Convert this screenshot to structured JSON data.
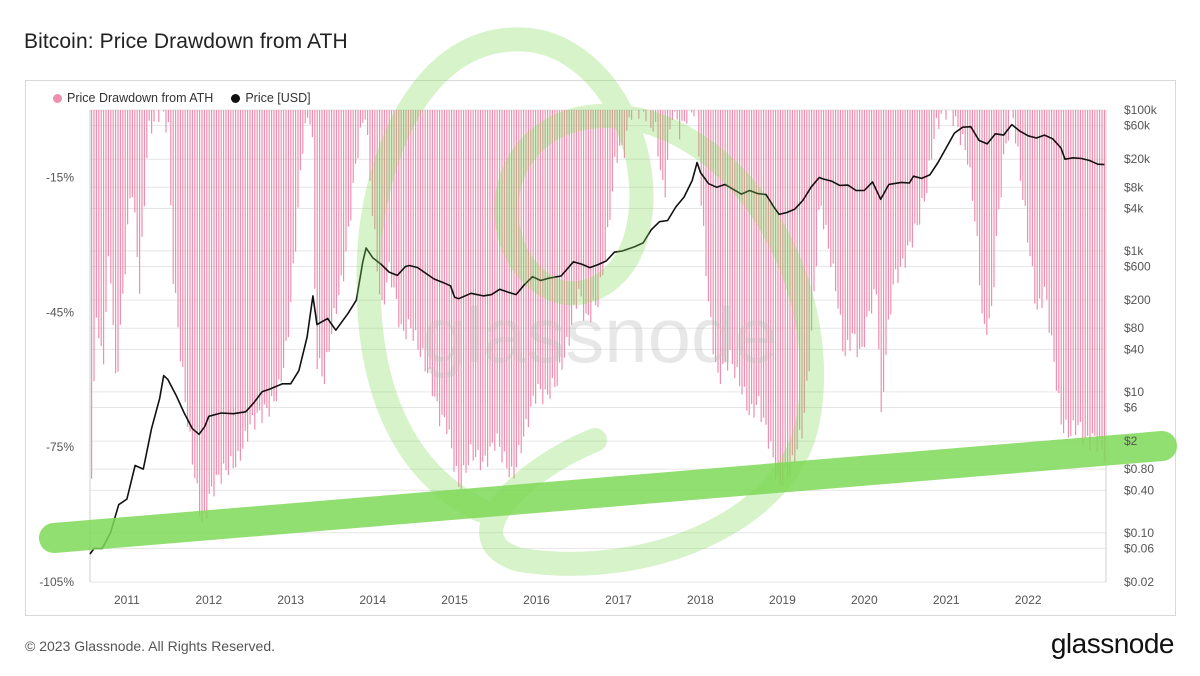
{
  "title": "Bitcoin: Price Drawdown from ATH",
  "footer": "© 2023 Glassnode. All Rights Reserved.",
  "brand": "glassnode",
  "watermark": "glassnode",
  "colors": {
    "drawdown": "#ee8fb0",
    "price": "#111111",
    "highlight": "#7ed957",
    "grid": "#e6e6e6",
    "axis": "#555555"
  },
  "chart_data": {
    "type": "bar",
    "legend": [
      {
        "name": "Price Drawdown from ATH",
        "color": "#ee8fb0",
        "marker": "dot"
      },
      {
        "name": "Price [USD]",
        "color": "#111111",
        "marker": "dot"
      }
    ],
    "legend_position": "top-left",
    "grid": true,
    "x": {
      "ticks": [
        "2011",
        "2012",
        "2013",
        "2014",
        "2015",
        "2016",
        "2017",
        "2018",
        "2019",
        "2020",
        "2021",
        "2022"
      ],
      "range": [
        2010.55,
        2022.95
      ]
    },
    "y_left": {
      "ticks": [
        "-15%",
        "-45%",
        "-75%",
        "-105%"
      ],
      "tick_values": [
        -15,
        -45,
        -75,
        -105
      ],
      "range": [
        -105,
        0
      ]
    },
    "y_right": {
      "scale": "log",
      "ticks": [
        "$100k",
        "$60k",
        "$20k",
        "$8k",
        "$4k",
        "$1k",
        "$600",
        "$200",
        "$80",
        "$40",
        "$10",
        "$6",
        "$2",
        "$0.80",
        "$0.40",
        "$0.10",
        "$0.06",
        "$0.02"
      ],
      "tick_values": [
        100000,
        60000,
        20000,
        8000,
        4000,
        1000,
        600,
        200,
        80,
        40,
        10,
        6,
        2,
        0.8,
        0.4,
        0.1,
        0.06,
        0.02
      ],
      "range": [
        0.02,
        100000
      ]
    },
    "series": [
      {
        "name": "Price Drawdown from ATH",
        "kind": "bar",
        "points": [
          [
            2010.55,
            -88
          ],
          [
            2010.62,
            -45
          ],
          [
            2010.7,
            -58
          ],
          [
            2010.78,
            -30
          ],
          [
            2010.86,
            -62
          ],
          [
            2010.95,
            -40
          ],
          [
            2011.05,
            -15
          ],
          [
            2011.15,
            -40
          ],
          [
            2011.25,
            -5
          ],
          [
            2011.4,
            0
          ],
          [
            2011.5,
            -4
          ],
          [
            2011.55,
            -35
          ],
          [
            2011.65,
            -55
          ],
          [
            2011.75,
            -72
          ],
          [
            2011.85,
            -85
          ],
          [
            2011.92,
            -93
          ],
          [
            2012.0,
            -86
          ],
          [
            2012.1,
            -82
          ],
          [
            2012.2,
            -80
          ],
          [
            2012.35,
            -78
          ],
          [
            2012.5,
            -70
          ],
          [
            2012.6,
            -68
          ],
          [
            2012.75,
            -66
          ],
          [
            2012.85,
            -62
          ],
          [
            2012.95,
            -52
          ],
          [
            2013.05,
            -30
          ],
          [
            2013.15,
            -5
          ],
          [
            2013.25,
            0
          ],
          [
            2013.3,
            -55
          ],
          [
            2013.4,
            -60
          ],
          [
            2013.5,
            -48
          ],
          [
            2013.65,
            -35
          ],
          [
            2013.8,
            -10
          ],
          [
            2013.9,
            0
          ],
          [
            2014.0,
            -25
          ],
          [
            2014.1,
            -45
          ],
          [
            2014.2,
            -35
          ],
          [
            2014.35,
            -50
          ],
          [
            2014.45,
            -48
          ],
          [
            2014.6,
            -55
          ],
          [
            2014.7,
            -60
          ],
          [
            2014.8,
            -68
          ],
          [
            2014.9,
            -70
          ],
          [
            2015.0,
            -80
          ],
          [
            2015.05,
            -84
          ],
          [
            2015.2,
            -76
          ],
          [
            2015.35,
            -79
          ],
          [
            2015.5,
            -73
          ],
          [
            2015.6,
            -78
          ],
          [
            2015.7,
            -82
          ],
          [
            2015.8,
            -75
          ],
          [
            2015.9,
            -68
          ],
          [
            2016.0,
            -62
          ],
          [
            2016.1,
            -64
          ],
          [
            2016.25,
            -60
          ],
          [
            2016.4,
            -50
          ],
          [
            2016.5,
            -40
          ],
          [
            2016.6,
            -47
          ],
          [
            2016.75,
            -42
          ],
          [
            2016.85,
            -30
          ],
          [
            2016.95,
            -12
          ],
          [
            2017.0,
            -8
          ],
          [
            2017.05,
            -10
          ],
          [
            2017.15,
            0
          ],
          [
            2017.3,
            0
          ],
          [
            2017.45,
            -5
          ],
          [
            2017.55,
            -20
          ],
          [
            2017.65,
            0
          ],
          [
            2017.75,
            -5
          ],
          [
            2017.85,
            0
          ],
          [
            2017.95,
            0
          ],
          [
            2018.0,
            -20
          ],
          [
            2018.1,
            -45
          ],
          [
            2018.2,
            -60
          ],
          [
            2018.35,
            -55
          ],
          [
            2018.5,
            -62
          ],
          [
            2018.6,
            -68
          ],
          [
            2018.7,
            -65
          ],
          [
            2018.85,
            -75
          ],
          [
            2018.95,
            -84
          ],
          [
            2019.0,
            -82
          ],
          [
            2019.1,
            -80
          ],
          [
            2019.25,
            -70
          ],
          [
            2019.35,
            -50
          ],
          [
            2019.45,
            -20
          ],
          [
            2019.55,
            -30
          ],
          [
            2019.65,
            -40
          ],
          [
            2019.75,
            -55
          ],
          [
            2019.85,
            -50
          ],
          [
            2019.95,
            -55
          ],
          [
            2020.05,
            -45
          ],
          [
            2020.15,
            -40
          ],
          [
            2020.2,
            -70
          ],
          [
            2020.25,
            -55
          ],
          [
            2020.35,
            -38
          ],
          [
            2020.45,
            -35
          ],
          [
            2020.55,
            -30
          ],
          [
            2020.65,
            -25
          ],
          [
            2020.75,
            -18
          ],
          [
            2020.85,
            -5
          ],
          [
            2020.95,
            0
          ],
          [
            2021.05,
            0
          ],
          [
            2021.15,
            -5
          ],
          [
            2021.25,
            -10
          ],
          [
            2021.35,
            -25
          ],
          [
            2021.45,
            -50
          ],
          [
            2021.55,
            -45
          ],
          [
            2021.6,
            -30
          ],
          [
            2021.7,
            -10
          ],
          [
            2021.8,
            0
          ],
          [
            2021.9,
            -15
          ],
          [
            2022.0,
            -30
          ],
          [
            2022.1,
            -45
          ],
          [
            2022.2,
            -40
          ],
          [
            2022.3,
            -55
          ],
          [
            2022.4,
            -70
          ],
          [
            2022.5,
            -72
          ],
          [
            2022.6,
            -70
          ],
          [
            2022.7,
            -74
          ],
          [
            2022.8,
            -73
          ],
          [
            2022.88,
            -75
          ],
          [
            2022.93,
            -77
          ]
        ]
      },
      {
        "name": "Price [USD]",
        "kind": "line",
        "points": [
          [
            2010.55,
            0.05
          ],
          [
            2010.6,
            0.06
          ],
          [
            2010.7,
            0.06
          ],
          [
            2010.8,
            0.1
          ],
          [
            2010.9,
            0.25
          ],
          [
            2011.0,
            0.3
          ],
          [
            2011.1,
            0.9
          ],
          [
            2011.2,
            0.8
          ],
          [
            2011.3,
            3
          ],
          [
            2011.4,
            8
          ],
          [
            2011.45,
            17
          ],
          [
            2011.5,
            15
          ],
          [
            2011.6,
            9
          ],
          [
            2011.7,
            5
          ],
          [
            2011.8,
            3
          ],
          [
            2011.88,
            2.5
          ],
          [
            2011.95,
            3.2
          ],
          [
            2012.0,
            4.5
          ],
          [
            2012.15,
            5
          ],
          [
            2012.3,
            4.9
          ],
          [
            2012.45,
            5.2
          ],
          [
            2012.55,
            7
          ],
          [
            2012.65,
            10
          ],
          [
            2012.75,
            11
          ],
          [
            2012.9,
            13
          ],
          [
            2013.0,
            13
          ],
          [
            2013.1,
            20
          ],
          [
            2013.2,
            60
          ],
          [
            2013.27,
            230
          ],
          [
            2013.32,
            90
          ],
          [
            2013.45,
            110
          ],
          [
            2013.55,
            75
          ],
          [
            2013.7,
            130
          ],
          [
            2013.8,
            200
          ],
          [
            2013.88,
            700
          ],
          [
            2013.92,
            1100
          ],
          [
            2014.0,
            800
          ],
          [
            2014.1,
            650
          ],
          [
            2014.2,
            500
          ],
          [
            2014.3,
            450
          ],
          [
            2014.4,
            600
          ],
          [
            2014.45,
            620
          ],
          [
            2014.55,
            580
          ],
          [
            2014.65,
            480
          ],
          [
            2014.75,
            400
          ],
          [
            2014.85,
            360
          ],
          [
            2014.95,
            320
          ],
          [
            2015.0,
            220
          ],
          [
            2015.05,
            210
          ],
          [
            2015.2,
            250
          ],
          [
            2015.35,
            230
          ],
          [
            2015.45,
            240
          ],
          [
            2015.55,
            285
          ],
          [
            2015.65,
            260
          ],
          [
            2015.75,
            240
          ],
          [
            2015.85,
            330
          ],
          [
            2015.95,
            430
          ],
          [
            2016.05,
            380
          ],
          [
            2016.15,
            410
          ],
          [
            2016.3,
            440
          ],
          [
            2016.45,
            700
          ],
          [
            2016.55,
            650
          ],
          [
            2016.65,
            580
          ],
          [
            2016.75,
            640
          ],
          [
            2016.85,
            720
          ],
          [
            2016.95,
            960
          ],
          [
            2017.05,
            1000
          ],
          [
            2017.2,
            1150
          ],
          [
            2017.3,
            1300
          ],
          [
            2017.4,
            2000
          ],
          [
            2017.5,
            2600
          ],
          [
            2017.6,
            2700
          ],
          [
            2017.7,
            4200
          ],
          [
            2017.8,
            5800
          ],
          [
            2017.9,
            10000
          ],
          [
            2017.96,
            18000
          ],
          [
            2018.0,
            13000
          ],
          [
            2018.1,
            9000
          ],
          [
            2018.2,
            8000
          ],
          [
            2018.3,
            8800
          ],
          [
            2018.4,
            7500
          ],
          [
            2018.5,
            6400
          ],
          [
            2018.6,
            7200
          ],
          [
            2018.7,
            6500
          ],
          [
            2018.8,
            6300
          ],
          [
            2018.9,
            4100
          ],
          [
            2018.96,
            3300
          ],
          [
            2019.05,
            3500
          ],
          [
            2019.15,
            3900
          ],
          [
            2019.25,
            5200
          ],
          [
            2019.35,
            8000
          ],
          [
            2019.45,
            11000
          ],
          [
            2019.5,
            10500
          ],
          [
            2019.6,
            9800
          ],
          [
            2019.7,
            8500
          ],
          [
            2019.8,
            8600
          ],
          [
            2019.9,
            7200
          ],
          [
            2020.0,
            7200
          ],
          [
            2020.1,
            9500
          ],
          [
            2020.2,
            5400
          ],
          [
            2020.3,
            8800
          ],
          [
            2020.45,
            9400
          ],
          [
            2020.55,
            9200
          ],
          [
            2020.6,
            11500
          ],
          [
            2020.7,
            10700
          ],
          [
            2020.8,
            12000
          ],
          [
            2020.9,
            18000
          ],
          [
            2021.0,
            29000
          ],
          [
            2021.1,
            47000
          ],
          [
            2021.2,
            57000
          ],
          [
            2021.3,
            58000
          ],
          [
            2021.4,
            37000
          ],
          [
            2021.5,
            33000
          ],
          [
            2021.6,
            46000
          ],
          [
            2021.7,
            44000
          ],
          [
            2021.8,
            62000
          ],
          [
            2021.9,
            50000
          ],
          [
            2022.0,
            43000
          ],
          [
            2022.1,
            40000
          ],
          [
            2022.2,
            44000
          ],
          [
            2022.3,
            39000
          ],
          [
            2022.4,
            29000
          ],
          [
            2022.45,
            20000
          ],
          [
            2022.55,
            21000
          ],
          [
            2022.65,
            20500
          ],
          [
            2022.75,
            19200
          ],
          [
            2022.85,
            17000
          ],
          [
            2022.93,
            16800
          ]
        ]
      }
    ]
  }
}
